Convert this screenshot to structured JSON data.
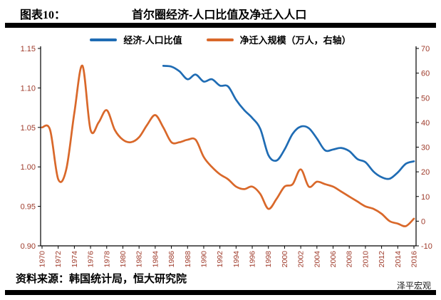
{
  "header": {
    "label": "图表10：",
    "title": "首尔圈经济-人口比值及净迁入人口"
  },
  "footer": {
    "source": "资料来源：韩国统计局，恒大研究院",
    "watermark": "泽平宏观"
  },
  "chart_data": {
    "type": "line",
    "title": "首尔圈经济-人口比值及净迁入人口",
    "grid": false,
    "legend_position": "top-center",
    "x_range": [
      1970,
      2016
    ],
    "x_ticks": [
      1970,
      1972,
      1974,
      1976,
      1978,
      1980,
      1982,
      1984,
      1986,
      1988,
      1990,
      1992,
      1994,
      1996,
      1998,
      2000,
      2002,
      2004,
      2006,
      2008,
      2010,
      2012,
      2014,
      2016
    ],
    "left_axis": {
      "min": 0.9,
      "max": 1.15,
      "ticks": [
        "1.15",
        "1.10",
        "1.05",
        "1.00",
        "0.95",
        "0.90"
      ],
      "label_color": "#9E3A2A"
    },
    "right_axis": {
      "min": -10,
      "max": 70,
      "ticks": [
        70,
        60,
        50,
        40,
        30,
        20,
        10,
        0,
        -10
      ],
      "label_color": "#9E3A2A"
    },
    "series": [
      {
        "name": "经济-人口比值",
        "axis": "left",
        "color": "#1F6CB4",
        "x": [
          1985,
          1986,
          1987,
          1988,
          1989,
          1990,
          1991,
          1992,
          1993,
          1994,
          1995,
          1996,
          1997,
          1998,
          1999,
          2000,
          2001,
          2002,
          2003,
          2004,
          2005,
          2006,
          2007,
          2008,
          2009,
          2010,
          2011,
          2012,
          2013,
          2014,
          2015,
          2016
        ],
        "values": [
          1.128,
          1.127,
          1.121,
          1.111,
          1.117,
          1.108,
          1.111,
          1.103,
          1.102,
          1.085,
          1.072,
          1.062,
          1.048,
          1.015,
          1.008,
          1.022,
          1.042,
          1.051,
          1.049,
          1.036,
          1.021,
          1.022,
          1.024,
          1.02,
          1.01,
          1.006,
          0.994,
          0.987,
          0.985,
          0.993,
          1.004,
          1.007
        ]
      },
      {
        "name": "净迁入规模（万人，右轴）",
        "axis": "right",
        "color": "#D9682A",
        "x": [
          1970,
          1971,
          1972,
          1973,
          1974,
          1975,
          1976,
          1977,
          1978,
          1979,
          1980,
          1981,
          1982,
          1983,
          1984,
          1985,
          1986,
          1987,
          1988,
          1989,
          1990,
          1991,
          1992,
          1993,
          1994,
          1995,
          1996,
          1997,
          1998,
          1999,
          2000,
          2001,
          2002,
          2003,
          2004,
          2005,
          2006,
          2007,
          2008,
          2009,
          2010,
          2011,
          2012,
          2013,
          2014,
          2015,
          2016
        ],
        "values": [
          38,
          37,
          17,
          21,
          44,
          63,
          37,
          40,
          45,
          37,
          33,
          32,
          34,
          39,
          43,
          38,
          32,
          32,
          33,
          33,
          26,
          22,
          19,
          17,
          14,
          13,
          14,
          11,
          5,
          9,
          14,
          15,
          21,
          14,
          16,
          15,
          14,
          12,
          10,
          8,
          6,
          5,
          3,
          0,
          -1,
          -2,
          1
        ]
      }
    ]
  }
}
